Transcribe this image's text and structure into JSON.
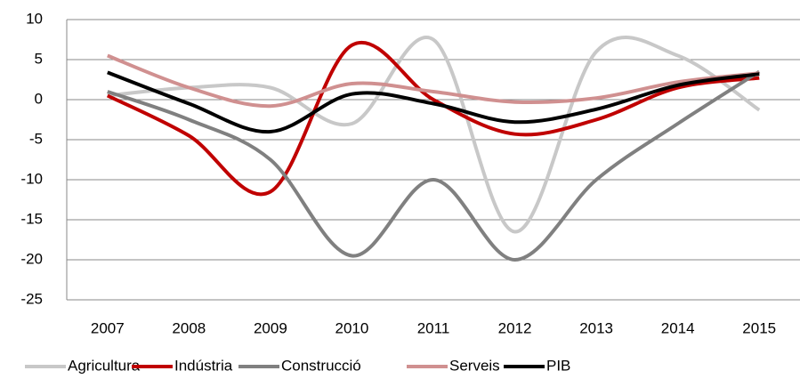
{
  "chart_data": {
    "type": "line",
    "categories": [
      "2007",
      "2008",
      "2009",
      "2010",
      "2011",
      "2012",
      "2013",
      "2014",
      "2015"
    ],
    "series": [
      {
        "name": "Agricultura",
        "color": "#c8c8c8",
        "values": [
          0.5,
          1.5,
          1.5,
          -3,
          7.5,
          -16.5,
          6,
          5.5,
          -1.3
        ]
      },
      {
        "name": "Indústria",
        "color": "#c00000",
        "values": [
          0.5,
          -4.5,
          -11.5,
          6.8,
          0,
          -4.3,
          -2.5,
          1.5,
          2.7
        ]
      },
      {
        "name": "Construcció",
        "color": "#808080",
        "values": [
          1,
          -2.5,
          -7.5,
          -19.5,
          -10,
          -20,
          -10,
          -3,
          3.5
        ]
      },
      {
        "name": "Serveis",
        "color": "#d09090",
        "values": [
          5.5,
          1.5,
          -0.8,
          2,
          1,
          -0.3,
          0.2,
          2.2,
          3.3
        ]
      },
      {
        "name": "PIB",
        "color": "#000000",
        "values": [
          3.4,
          -0.5,
          -4,
          0.7,
          -0.5,
          -2.8,
          -1.2,
          1.8,
          3.2
        ]
      }
    ],
    "ylim": [
      -25,
      10
    ],
    "yticks": [
      -25,
      -20,
      -15,
      -10,
      -5,
      0,
      5,
      10
    ],
    "grid": true,
    "legend": "bottom",
    "smooth": true
  }
}
